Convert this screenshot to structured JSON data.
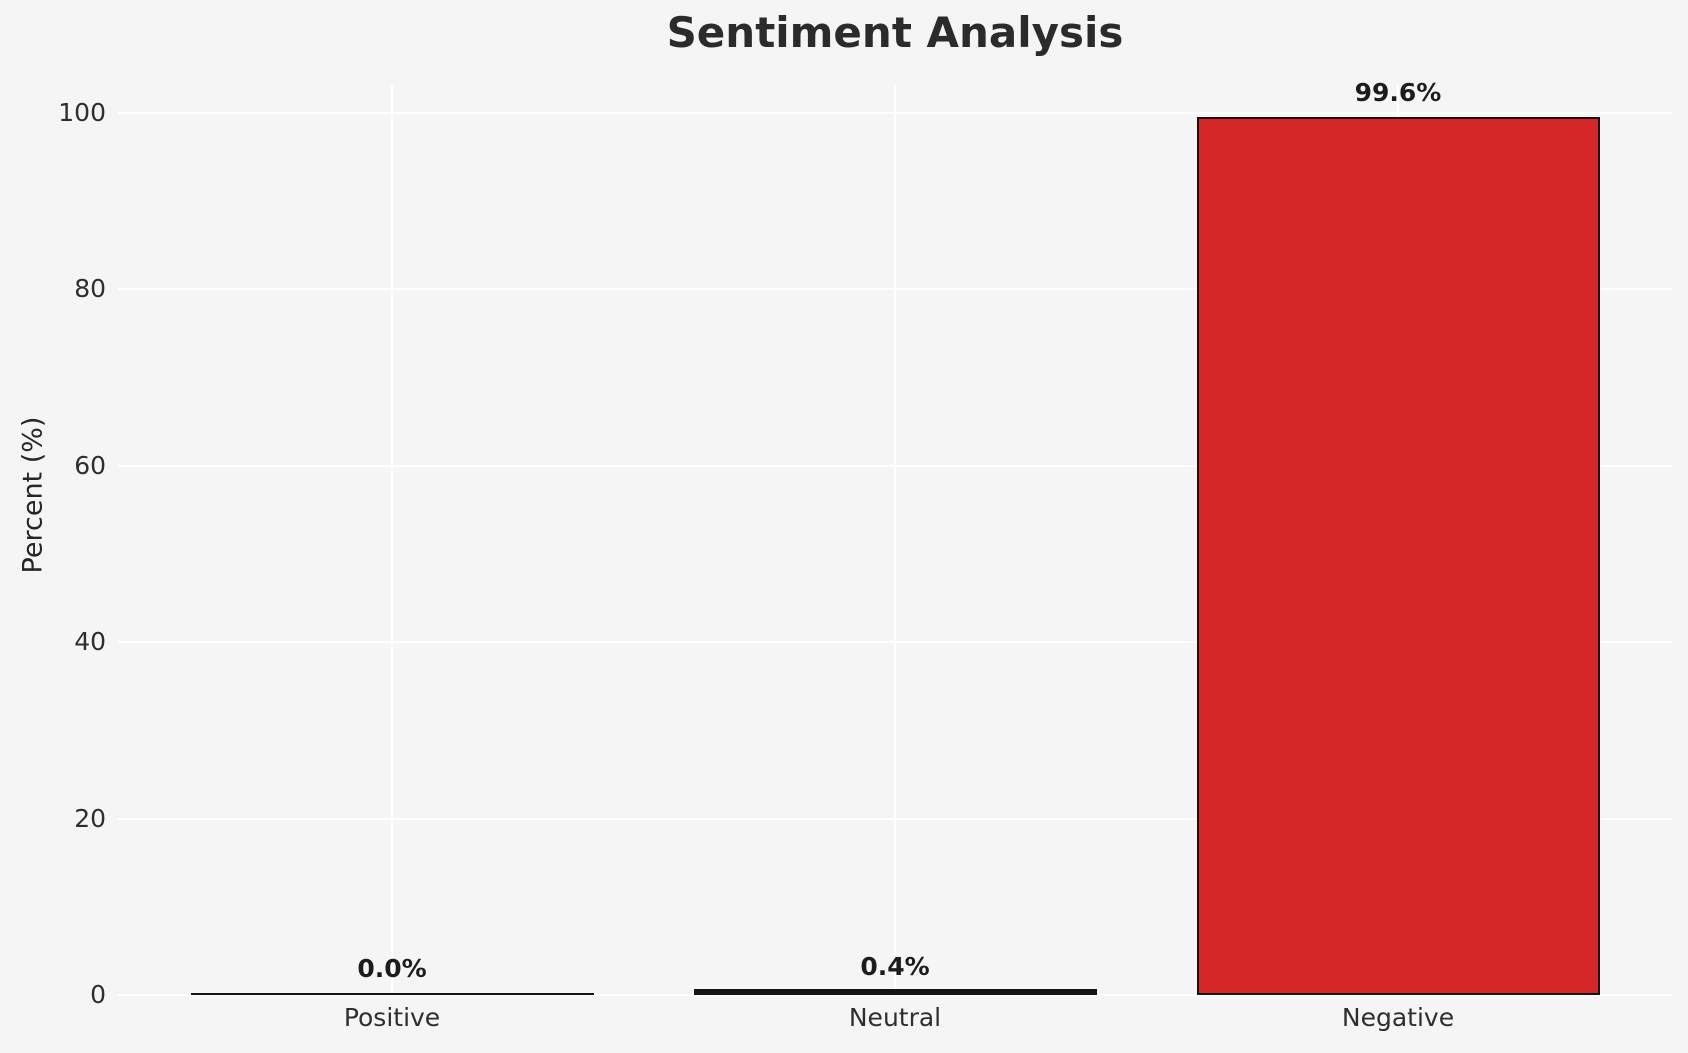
{
  "chart_data": {
    "type": "bar",
    "title": "Sentiment Analysis",
    "xlabel": "",
    "ylabel": "Percent (%)",
    "categories": [
      "Positive",
      "Neutral",
      "Negative"
    ],
    "values": [
      0.0,
      0.4,
      99.6
    ],
    "bar_labels": [
      "0.0%",
      "0.4%",
      "99.6%"
    ],
    "yticks": [
      0,
      20,
      40,
      60,
      80,
      100
    ],
    "ylim": [
      0,
      103
    ],
    "grid": true,
    "legend": "none",
    "colors": {
      "bar_fills": [
        "none",
        "none",
        "#d62728"
      ],
      "bar_edge": "#141414",
      "background": "#f5f5f6",
      "gridline": "#ffffff",
      "text": "#262626"
    }
  }
}
